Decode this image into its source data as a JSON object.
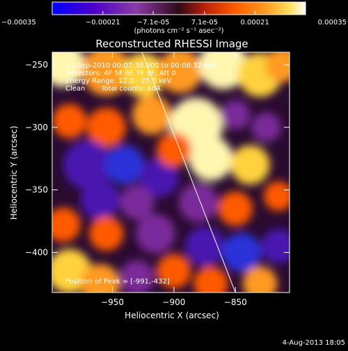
{
  "colorbar": {
    "ticks": [
      "-0.00035",
      "-0.00021",
      "-7.1e-05",
      "7.1e-05",
      "0.00021",
      "0.00035"
    ],
    "unit_label": "(photons cm⁻² s⁻¹ asec⁻²)",
    "range": [
      -0.00035,
      0.00035
    ],
    "colors": [
      "#0000ff",
      "#4a00c8",
      "#8a3ca8",
      "#b8200a",
      "#ff5a00",
      "#ff9a20",
      "#ffe060",
      "#ffffff"
    ]
  },
  "annotations": {
    "time_range": "11-Sep-2010 00:07:38.000 to 00:08:32.000",
    "detectors": "Detectors: 4F 5F 6F 7F 8F, Att 0",
    "energy": "Energy Range: 12.0 - 25.0 keV",
    "clean": "Clean",
    "counts": "Total counts: 684.",
    "peak": "Position of Peak = [-991,-432]"
  },
  "footer": {
    "date": "4-Aug-2013 18:05"
  },
  "chart_data": {
    "type": "heatmap",
    "title": "Reconstructed RHESSI Image",
    "xlabel": "Heliocentric X (arcsec)",
    "ylabel": "Heliocentric Y (arcsec)",
    "xlim": [
      -999,
      -806
    ],
    "ylim": [
      -432,
      -240
    ],
    "xticks": [
      -950,
      -900,
      -850
    ],
    "xtick_labels": [
      "−950",
      "−900",
      "−850"
    ],
    "yticks": [
      -250,
      -300,
      -350,
      -400
    ],
    "ytick_labels": [
      "−250",
      "−300",
      "−350",
      "−400"
    ],
    "peak": [
      -991,
      -432
    ],
    "limb_line": [
      [
        -926,
        -240
      ],
      [
        -850,
        -432
      ]
    ],
    "blobs": [
      {
        "x": -990,
        "y": -250,
        "v": 0.9,
        "r": 18
      },
      {
        "x": -955,
        "y": -255,
        "v": 0.6,
        "r": 20
      },
      {
        "x": -925,
        "y": -258,
        "v": 0.7,
        "r": 18
      },
      {
        "x": -895,
        "y": -255,
        "v": 0.5,
        "r": 18
      },
      {
        "x": -860,
        "y": -250,
        "v": 0.9,
        "r": 20
      },
      {
        "x": -830,
        "y": -258,
        "v": 0.8,
        "r": 18
      },
      {
        "x": -812,
        "y": -250,
        "v": 0.5,
        "r": 14
      },
      {
        "x": -985,
        "y": -295,
        "v": 0.3,
        "r": 14
      },
      {
        "x": -955,
        "y": -300,
        "v": 0.4,
        "r": 16
      },
      {
        "x": -918,
        "y": -290,
        "v": 0.5,
        "r": 16
      },
      {
        "x": -882,
        "y": -298,
        "v": 1.0,
        "r": 22
      },
      {
        "x": -870,
        "y": -325,
        "v": 0.9,
        "r": 18
      },
      {
        "x": -838,
        "y": -330,
        "v": 0.7,
        "r": 16
      },
      {
        "x": -825,
        "y": -300,
        "v": -0.5,
        "r": 12
      },
      {
        "x": -850,
        "y": -290,
        "v": -0.5,
        "r": 12
      },
      {
        "x": -970,
        "y": -330,
        "v": -0.7,
        "r": 20
      },
      {
        "x": -940,
        "y": -330,
        "v": -0.9,
        "r": 16
      },
      {
        "x": -912,
        "y": -340,
        "v": -0.6,
        "r": 16
      },
      {
        "x": -960,
        "y": -358,
        "v": -0.7,
        "r": 16
      },
      {
        "x": -900,
        "y": -318,
        "v": 0.4,
        "r": 14
      },
      {
        "x": -880,
        "y": -360,
        "v": -0.5,
        "r": 16
      },
      {
        "x": -850,
        "y": -365,
        "v": 0.3,
        "r": 14
      },
      {
        "x": -815,
        "y": -355,
        "v": 0.4,
        "r": 12
      },
      {
        "x": -990,
        "y": -378,
        "v": 0.3,
        "r": 14
      },
      {
        "x": -955,
        "y": -385,
        "v": 0.4,
        "r": 14
      },
      {
        "x": -915,
        "y": -385,
        "v": -0.4,
        "r": 16
      },
      {
        "x": -875,
        "y": -395,
        "v": -0.7,
        "r": 16
      },
      {
        "x": -845,
        "y": -400,
        "v": -0.9,
        "r": 16
      },
      {
        "x": -815,
        "y": -395,
        "v": -0.6,
        "r": 14
      },
      {
        "x": -985,
        "y": -415,
        "v": 0.7,
        "r": 18
      },
      {
        "x": -960,
        "y": -425,
        "v": 0.5,
        "r": 16
      },
      {
        "x": -930,
        "y": -420,
        "v": -0.5,
        "r": 14
      },
      {
        "x": -900,
        "y": -415,
        "v": 0.4,
        "r": 14
      },
      {
        "x": -870,
        "y": -425,
        "v": 0.3,
        "r": 14
      },
      {
        "x": -830,
        "y": -425,
        "v": 0.5,
        "r": 14
      },
      {
        "x": -930,
        "y": -360,
        "v": -0.4,
        "r": 14
      }
    ]
  }
}
